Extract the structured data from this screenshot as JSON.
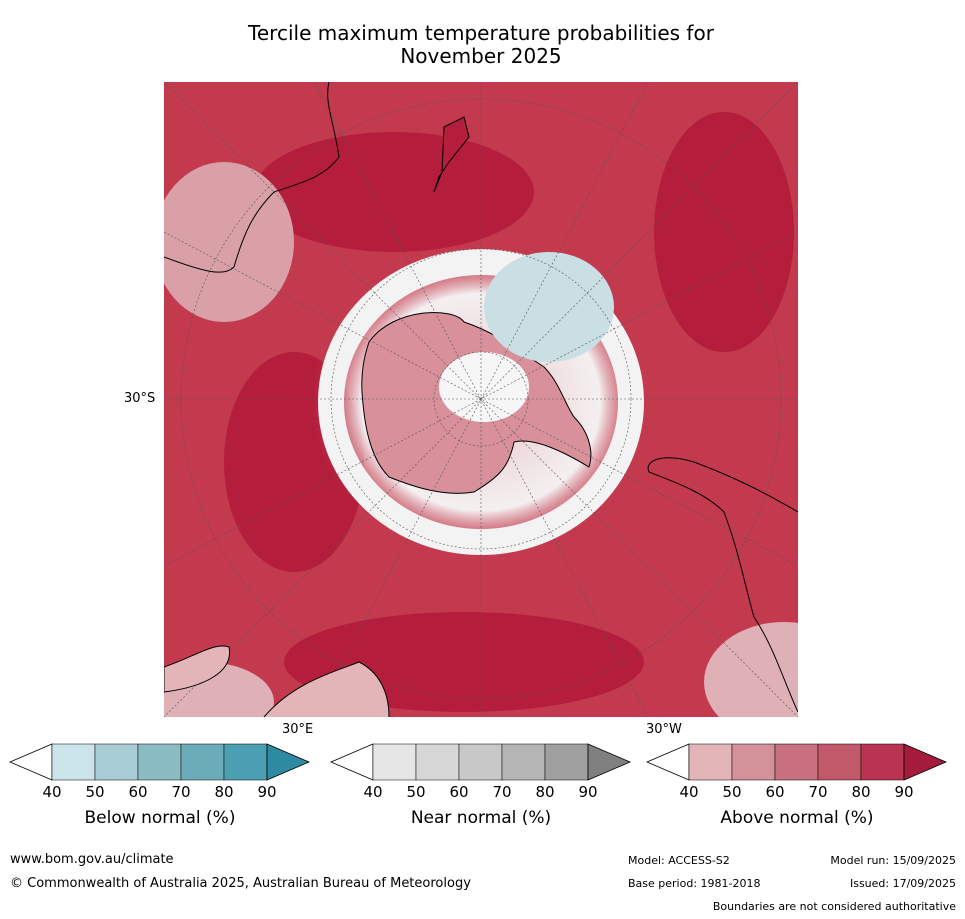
{
  "title_line1": "Tercile maximum temperature probabilities for",
  "title_line2": "November 2025",
  "labels": {
    "lat": "30°S",
    "lon_east": "30°E",
    "lon_west": "30°W"
  },
  "legends": [
    {
      "label": "Below normal (%)",
      "ticks": [
        "40",
        "50",
        "60",
        "70",
        "80",
        "90"
      ],
      "colors": [
        "#ffffff",
        "#cbe4ea",
        "#a9cdd4",
        "#8bbcc4",
        "#6cacb9",
        "#4aa0b2",
        "#2e8aa0"
      ]
    },
    {
      "label": "Near normal (%)",
      "ticks": [
        "40",
        "50",
        "60",
        "70",
        "80",
        "90"
      ],
      "colors": [
        "#ffffff",
        "#e6e6e6",
        "#d7d7d7",
        "#c8c8c8",
        "#b5b5b5",
        "#a0a0a0",
        "#808080"
      ]
    },
    {
      "label": "Above normal (%)",
      "ticks": [
        "40",
        "50",
        "60",
        "70",
        "80",
        "90"
      ],
      "colors": [
        "#ffffff",
        "#e3b5b9",
        "#d3919a",
        "#c9717e",
        "#c2596a",
        "#b83450",
        "#a51b3c"
      ]
    }
  ],
  "footer": {
    "url": "www.bom.gov.au/climate",
    "copyright": "© Commonwealth of Australia 2025, Australian Bureau of Meteorology",
    "model": "Model: ACCESS-S2",
    "model_run": "Model run: 15/09/2025",
    "base_period": "Base period: 1981-2018",
    "issued": "Issued: 17/09/2025",
    "disclaimer": "Boundaries are not considered authoritative"
  }
}
